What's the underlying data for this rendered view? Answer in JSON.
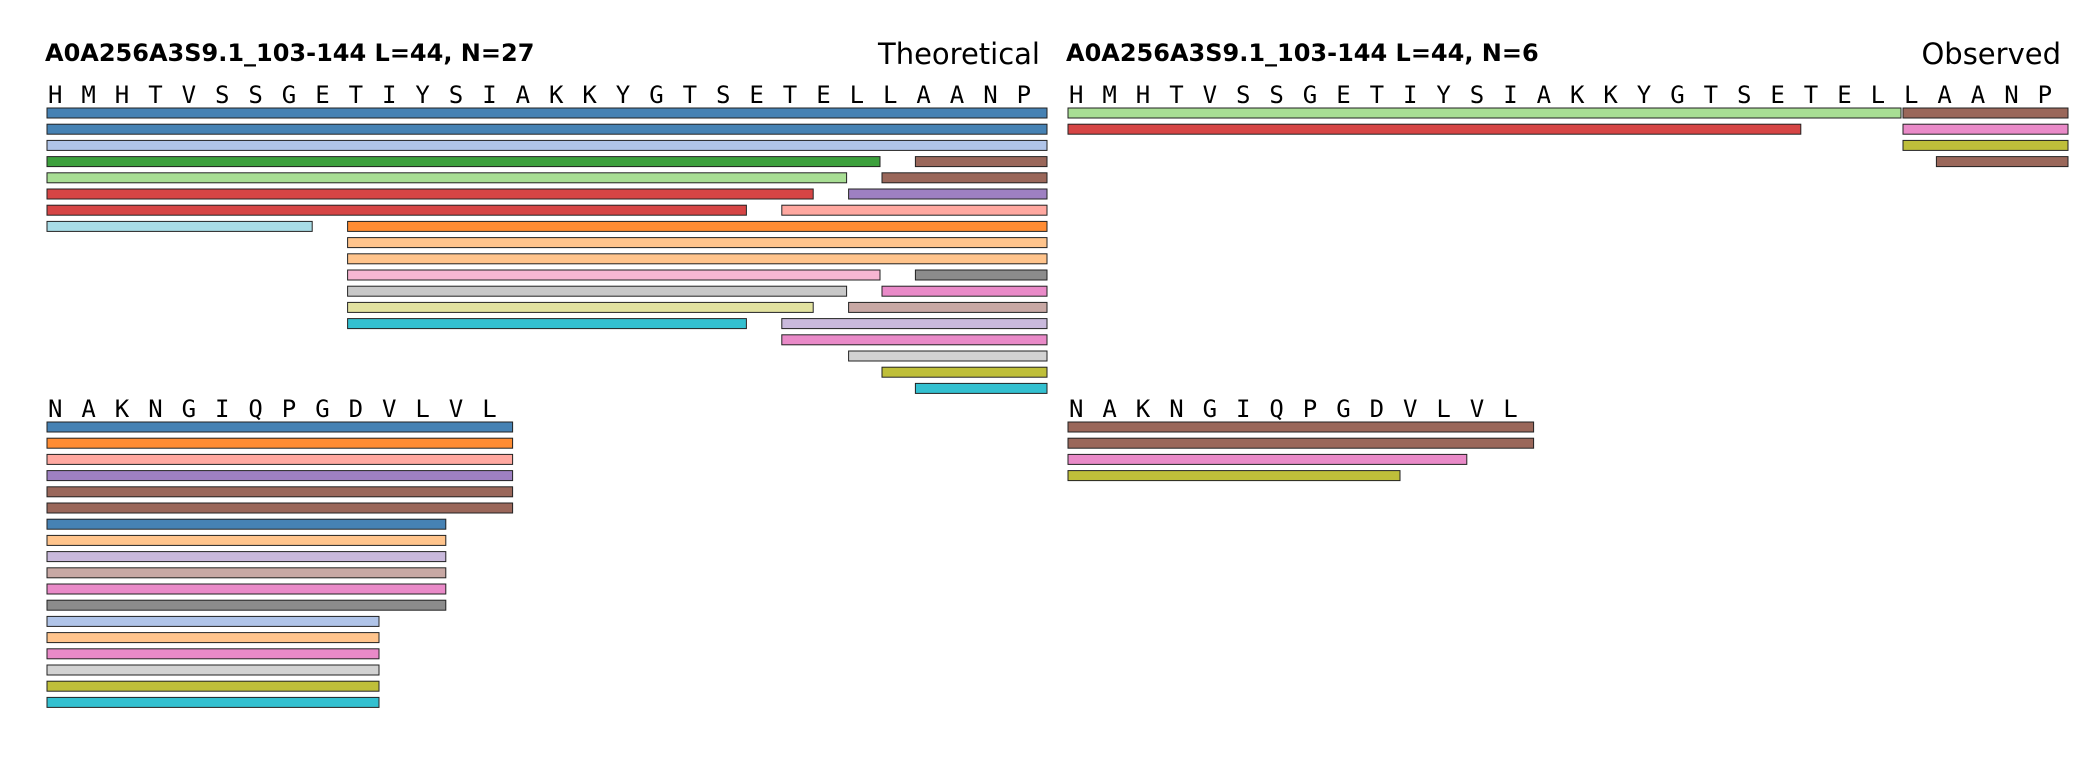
{
  "panels": [
    {
      "id": "theoretical",
      "title": "A0A256A3S9.1_103-144  L=44, N=27",
      "label": "Theoretical",
      "sequence": "HMHTVSSGETIYSIAKKYGTSETELLAANPNAKNGIQPGDVLVL",
      "peptides": [
        {
          "start": 0,
          "end": 44,
          "row": 0,
          "color": "#4682B4"
        },
        {
          "start": 0,
          "end": 43,
          "row": 1,
          "color": "#4682B4"
        },
        {
          "start": 0,
          "end": 41,
          "row": 2,
          "color": "#B0C4E8"
        },
        {
          "start": 0,
          "end": 25,
          "row": 3,
          "color": "#3CA03C"
        },
        {
          "start": 0,
          "end": 24,
          "row": 4,
          "color": "#A8DE94"
        },
        {
          "start": 0,
          "end": 23,
          "row": 5,
          "color": "#D64545"
        },
        {
          "start": 0,
          "end": 21,
          "row": 6,
          "color": "#D64545"
        },
        {
          "start": 0,
          "end": 8,
          "row": 7,
          "color": "#A8DCE6"
        },
        {
          "start": 9,
          "end": 44,
          "row": 7,
          "color": "#FF8C33"
        },
        {
          "start": 9,
          "end": 42,
          "row": 8,
          "color": "#FFC48C"
        },
        {
          "start": 9,
          "end": 40,
          "row": 9,
          "color": "#FFC48C"
        },
        {
          "start": 9,
          "end": 25,
          "row": 10,
          "color": "#F7B6D2"
        },
        {
          "start": 9,
          "end": 24,
          "row": 11,
          "color": "#C8C8C8"
        },
        {
          "start": 9,
          "end": 23,
          "row": 12,
          "color": "#E2E2A0"
        },
        {
          "start": 9,
          "end": 21,
          "row": 13,
          "color": "#33C0D0"
        },
        {
          "start": 26,
          "end": 29,
          "row": 3,
          "color": "#9A675A"
        },
        {
          "start": 25,
          "end": 29,
          "row": 4,
          "color": "#9A675A"
        },
        {
          "start": 24,
          "end": 32,
          "row": 5,
          "color": "#9E80C2"
        },
        {
          "start": 22,
          "end": 37,
          "row": 6,
          "color": "#FFA8A0"
        },
        {
          "start": 26,
          "end": 30,
          "row": 10,
          "color": "#8C8C8C"
        },
        {
          "start": 25,
          "end": 32,
          "row": 11,
          "color": "#E98AC8"
        },
        {
          "start": 24,
          "end": 32,
          "row": 12,
          "color": "#C8A8A4"
        },
        {
          "start": 22,
          "end": 37,
          "row": 13,
          "color": "#C9B9DC"
        },
        {
          "start": 22,
          "end": 37,
          "row": 14,
          "color": "#E98AC8"
        },
        {
          "start": 24,
          "end": 40,
          "row": 15,
          "color": "#D2D2D2"
        },
        {
          "start": 25,
          "end": 40,
          "row": 16,
          "color": "#BFBF3A"
        },
        {
          "start": 26,
          "end": 40,
          "row": 17,
          "color": "#33C0D0"
        },
        {
          "start": 30,
          "end": 44,
          "row": 0,
          "line": 1,
          "color": "#4682B4",
          "hidden": true
        }
      ]
    },
    {
      "id": "observed",
      "title": "A0A256A3S9.1_103-144  L=44, N=6",
      "label": "Observed",
      "sequence": "HMHTVSSGETIYSIAKKYGTSETELLAANPNAKNGIQPGDVLVL",
      "peptides": [
        {
          "start": 0,
          "end": 25,
          "row": 0,
          "color": "#A8DE94"
        },
        {
          "start": 0,
          "end": 22,
          "row": 1,
          "color": "#D64545"
        },
        {
          "start": 25,
          "end": 44,
          "row": 0,
          "color": "#9A675A"
        },
        {
          "start": 25,
          "end": 44,
          "row": 1,
          "color": "#9A675A"
        },
        {
          "start": 25,
          "end": 42,
          "row": 2,
          "color": "#E98AC8"
        },
        {
          "start": 25,
          "end": 40,
          "row": 3,
          "color": "#BFBF3A"
        },
        {
          "start": 26,
          "end": 44,
          "row": 4,
          "color": "#9A675A",
          "hidden": true
        }
      ]
    }
  ],
  "line1_bars": {
    "theoretical": [
      {
        "start": 0,
        "end": 30,
        "row": 0,
        "color": "#4682B4"
      },
      {
        "start": 0,
        "end": 30,
        "row": 1,
        "color": "#4682B4"
      },
      {
        "start": 0,
        "end": 30,
        "row": 2,
        "color": "#B0C4E8"
      },
      {
        "start": 0,
        "end": 25,
        "row": 3,
        "color": "#3CA03C"
      },
      {
        "start": 0,
        "end": 24,
        "row": 4,
        "color": "#A8DE94"
      },
      {
        "start": 0,
        "end": 23,
        "row": 5,
        "color": "#D64545"
      },
      {
        "start": 0,
        "end": 21,
        "row": 6,
        "color": "#D64545"
      },
      {
        "start": 0,
        "end": 8,
        "row": 7,
        "color": "#A8DCE6"
      },
      {
        "start": 9,
        "end": 30,
        "row": 7,
        "color": "#FF8C33"
      },
      {
        "start": 9,
        "end": 30,
        "row": 8,
        "color": "#FFC48C"
      },
      {
        "start": 9,
        "end": 30,
        "row": 9,
        "color": "#FFC48C"
      },
      {
        "start": 9,
        "end": 25,
        "row": 10,
        "color": "#F7B6D2"
      },
      {
        "start": 9,
        "end": 24,
        "row": 11,
        "color": "#C8C8C8"
      },
      {
        "start": 9,
        "end": 23,
        "row": 12,
        "color": "#E2E2A0"
      },
      {
        "start": 9,
        "end": 21,
        "row": 13,
        "color": "#33C0D0"
      },
      {
        "start": 26,
        "end": 30,
        "row": 3,
        "color": "#9A675A"
      },
      {
        "start": 25,
        "end": 30,
        "row": 4,
        "color": "#9A675A"
      },
      {
        "start": 24,
        "end": 30,
        "row": 5,
        "color": "#9E80C2"
      },
      {
        "start": 22,
        "end": 30,
        "row": 6,
        "color": "#FFA8A0"
      },
      {
        "start": 26,
        "end": 30,
        "row": 10,
        "color": "#8C8C8C"
      },
      {
        "start": 25,
        "end": 30,
        "row": 11,
        "color": "#E98AC8"
      },
      {
        "start": 24,
        "end": 30,
        "row": 12,
        "color": "#C8A8A4"
      },
      {
        "start": 22,
        "end": 30,
        "row": 13,
        "color": "#C9B9DC"
      },
      {
        "start": 22,
        "end": 30,
        "row": 14,
        "color": "#E98AC8"
      },
      {
        "start": 24,
        "end": 30,
        "row": 15,
        "color": "#D2D2D2"
      },
      {
        "start": 25,
        "end": 30,
        "row": 16,
        "color": "#BFBF3A"
      },
      {
        "start": 26,
        "end": 30,
        "row": 17,
        "color": "#33C0D0"
      }
    ],
    "observed": [
      {
        "start": 0,
        "end": 25,
        "row": 0,
        "color": "#A8DE94"
      },
      {
        "start": 0,
        "end": 22,
        "row": 1,
        "color": "#D64545"
      },
      {
        "start": 25,
        "end": 30,
        "row": 0,
        "color": "#9A675A"
      },
      {
        "start": 25,
        "end": 30,
        "row": 1,
        "color": "#E98AC8"
      },
      {
        "start": 25,
        "end": 30,
        "row": 2,
        "color": "#BFBF3A"
      },
      {
        "start": 26,
        "end": 30,
        "row": 3,
        "color": "#9A675A"
      }
    ]
  },
  "line2_bars": {
    "theoretical": [
      {
        "start": 30,
        "end": 44,
        "row": 0,
        "color": "#4682B4"
      },
      {
        "start": 30,
        "end": 44,
        "row": 1,
        "color": "#FF8C33"
      },
      {
        "start": 30,
        "end": 44,
        "row": 2,
        "color": "#FFA8A0"
      },
      {
        "start": 30,
        "end": 44,
        "row": 3,
        "color": "#9E80C2"
      },
      {
        "start": 30,
        "end": 44,
        "row": 4,
        "color": "#9A675A"
      },
      {
        "start": 30,
        "end": 44,
        "row": 5,
        "color": "#9A675A"
      },
      {
        "start": 30,
        "end": 42,
        "row": 6,
        "color": "#4682B4"
      },
      {
        "start": 30,
        "end": 42,
        "row": 7,
        "color": "#FFC48C"
      },
      {
        "start": 30,
        "end": 42,
        "row": 8,
        "color": "#C9B9DC"
      },
      {
        "start": 30,
        "end": 42,
        "row": 9,
        "color": "#C8A8A4"
      },
      {
        "start": 30,
        "end": 42,
        "row": 10,
        "color": "#E98AC8"
      },
      {
        "start": 30,
        "end": 42,
        "row": 11,
        "color": "#8C8C8C"
      },
      {
        "start": 30,
        "end": 40,
        "row": 12,
        "color": "#B0C4E8"
      },
      {
        "start": 30,
        "end": 40,
        "row": 13,
        "color": "#FFC48C"
      },
      {
        "start": 30,
        "end": 40,
        "row": 14,
        "color": "#E98AC8"
      },
      {
        "start": 30,
        "end": 40,
        "row": 15,
        "color": "#D2D2D2"
      },
      {
        "start": 30,
        "end": 40,
        "row": 16,
        "color": "#BFBF3A"
      },
      {
        "start": 30,
        "end": 40,
        "row": 17,
        "color": "#33C0D0"
      }
    ],
    "observed": [
      {
        "start": 30,
        "end": 44,
        "row": 0,
        "color": "#9A675A"
      },
      {
        "start": 30,
        "end": 44,
        "row": 1,
        "color": "#9A675A"
      },
      {
        "start": 30,
        "end": 42,
        "row": 2,
        "color": "#E98AC8"
      },
      {
        "start": 30,
        "end": 40,
        "row": 3,
        "color": "#BFBF3A"
      }
    ]
  }
}
